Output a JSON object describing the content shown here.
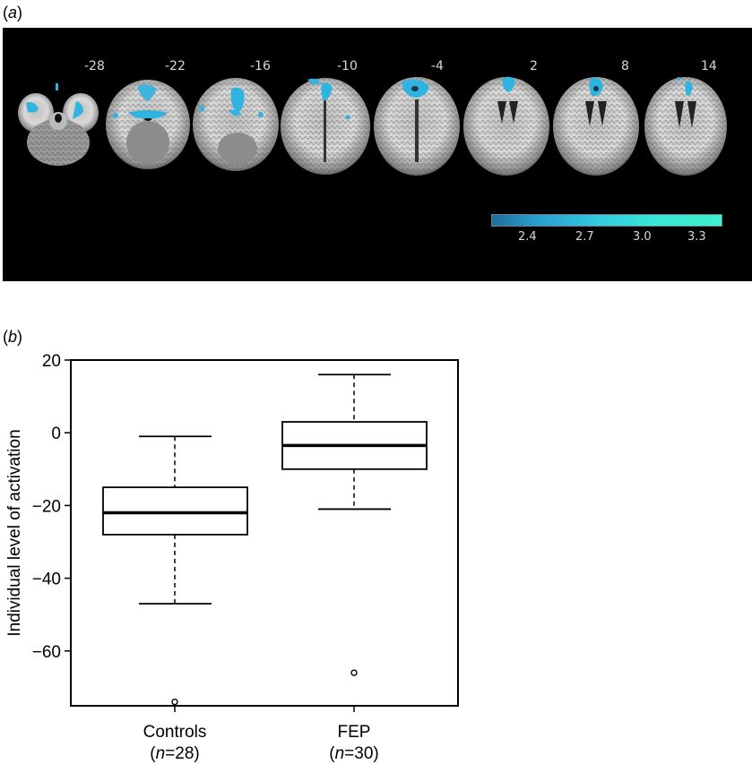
{
  "panel_a": {
    "label_open": "(",
    "label_letter": "a",
    "label_close": ")",
    "slices": [
      {
        "z": "-28"
      },
      {
        "z": "-22"
      },
      {
        "z": "-16"
      },
      {
        "z": "-10"
      },
      {
        "z": "-4"
      },
      {
        "z": "2"
      },
      {
        "z": "8"
      },
      {
        "z": "14"
      }
    ],
    "colorbar": {
      "ticks": [
        "2.4",
        "2.7",
        "3.0",
        "3.3"
      ],
      "color_low": "#1f6f99",
      "color_high": "#3ef0cc"
    }
  },
  "panel_b": {
    "label_open": "(",
    "label_letter": "b",
    "label_close": ")"
  },
  "chart_data": {
    "type": "box",
    "title": "",
    "xlabel": "",
    "ylabel": "Individual level of activation",
    "ylim": [
      -78,
      20
    ],
    "yticks": [
      "20",
      "0",
      "−20",
      "−40",
      "−60"
    ],
    "ytick_values": [
      20,
      0,
      -20,
      -40,
      -60
    ],
    "grid": false,
    "categories": [
      "Controls",
      "FEP"
    ],
    "category_sublabels": [
      "n=28",
      "n=30"
    ],
    "series": [
      {
        "name": "Controls",
        "n": 28,
        "whisker_high": -1,
        "q3": -15,
        "median": -22,
        "q1": -28,
        "whisker_low": -47,
        "outliers": [
          -74
        ]
      },
      {
        "name": "FEP",
        "n": 30,
        "whisker_high": 16,
        "q3": 3,
        "median": -3.5,
        "q1": -10,
        "whisker_low": -21,
        "outliers": [
          -66
        ]
      }
    ]
  }
}
